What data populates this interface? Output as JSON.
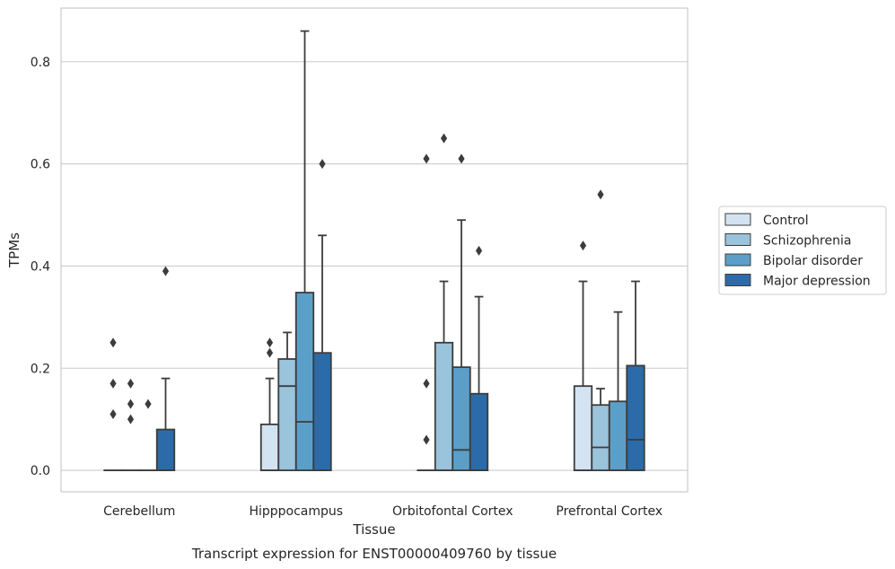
{
  "chart_data": {
    "type": "box",
    "title": "Transcript expression for ENST00000409760 by tissue",
    "xlabel": "Tissue",
    "ylabel": "TPMs",
    "ylim": [
      -0.042,
      0.905
    ],
    "yticks": [
      "0.0",
      "0.2",
      "0.4",
      "0.6",
      "0.8"
    ],
    "categories": [
      "Cerebellum",
      "Hipppocampus",
      "Orbitofontal Cortex",
      "Prefrontal Cortex"
    ],
    "grid": true,
    "legend_position": "right",
    "series": [
      {
        "name": "Control",
        "color": "#d4e3f1",
        "boxes": [
          {
            "q1": 0,
            "median": 0,
            "q3": 0,
            "whisker_low": 0,
            "whisker_high": 0,
            "outliers": [
              0.25,
              0.17,
              0.11
            ]
          },
          {
            "q1": 0,
            "median": 0,
            "q3": 0.09,
            "whisker_low": 0,
            "whisker_high": 0.18,
            "outliers": [
              0.25,
              0.23
            ]
          },
          {
            "q1": 0,
            "median": 0,
            "q3": 0,
            "whisker_low": 0,
            "whisker_high": 0,
            "outliers": [
              0.61,
              0.17,
              0.06
            ]
          },
          {
            "q1": 0,
            "median": 0,
            "q3": 0.165,
            "whisker_low": 0,
            "whisker_high": 0.37,
            "outliers": [
              0.44
            ]
          }
        ]
      },
      {
        "name": "Schizophrenia",
        "color": "#9ac3dc",
        "boxes": [
          {
            "q1": 0,
            "median": 0,
            "q3": 0,
            "whisker_low": 0,
            "whisker_high": 0,
            "outliers": [
              0.17,
              0.13,
              0.1
            ]
          },
          {
            "q1": 0,
            "median": 0.165,
            "q3": 0.218,
            "whisker_low": 0,
            "whisker_high": 0.27,
            "outliers": []
          },
          {
            "q1": 0,
            "median": 0,
            "q3": 0.25,
            "whisker_low": 0,
            "whisker_high": 0.37,
            "outliers": [
              0.65
            ]
          },
          {
            "q1": 0,
            "median": 0.045,
            "q3": 0.128,
            "whisker_low": 0,
            "whisker_high": 0.16,
            "outliers": [
              0.54
            ]
          }
        ]
      },
      {
        "name": "Bipolar disorder",
        "color": "#5b9fc9",
        "boxes": [
          {
            "q1": 0,
            "median": 0,
            "q3": 0,
            "whisker_low": 0,
            "whisker_high": 0,
            "outliers": [
              0.13
            ]
          },
          {
            "q1": 0,
            "median": 0.095,
            "q3": 0.348,
            "whisker_low": 0,
            "whisker_high": 0.86,
            "outliers": []
          },
          {
            "q1": 0,
            "median": 0.04,
            "q3": 0.202,
            "whisker_low": 0,
            "whisker_high": 0.49,
            "outliers": [
              0.61
            ]
          },
          {
            "q1": 0,
            "median": 0,
            "q3": 0.135,
            "whisker_low": 0,
            "whisker_high": 0.31,
            "outliers": []
          }
        ]
      },
      {
        "name": "Major depression",
        "color": "#2b6ba9",
        "boxes": [
          {
            "q1": 0,
            "median": 0,
            "q3": 0.08,
            "whisker_low": 0,
            "whisker_high": 0.18,
            "outliers": [
              0.39
            ]
          },
          {
            "q1": 0,
            "median": 0,
            "q3": 0.23,
            "whisker_low": 0,
            "whisker_high": 0.46,
            "outliers": [
              0.6
            ]
          },
          {
            "q1": 0,
            "median": 0,
            "q3": 0.15,
            "whisker_low": 0,
            "whisker_high": 0.34,
            "outliers": [
              0.43
            ]
          },
          {
            "q1": 0,
            "median": 0.06,
            "q3": 0.205,
            "whisker_low": 0,
            "whisker_high": 0.37,
            "outliers": []
          }
        ]
      }
    ]
  }
}
